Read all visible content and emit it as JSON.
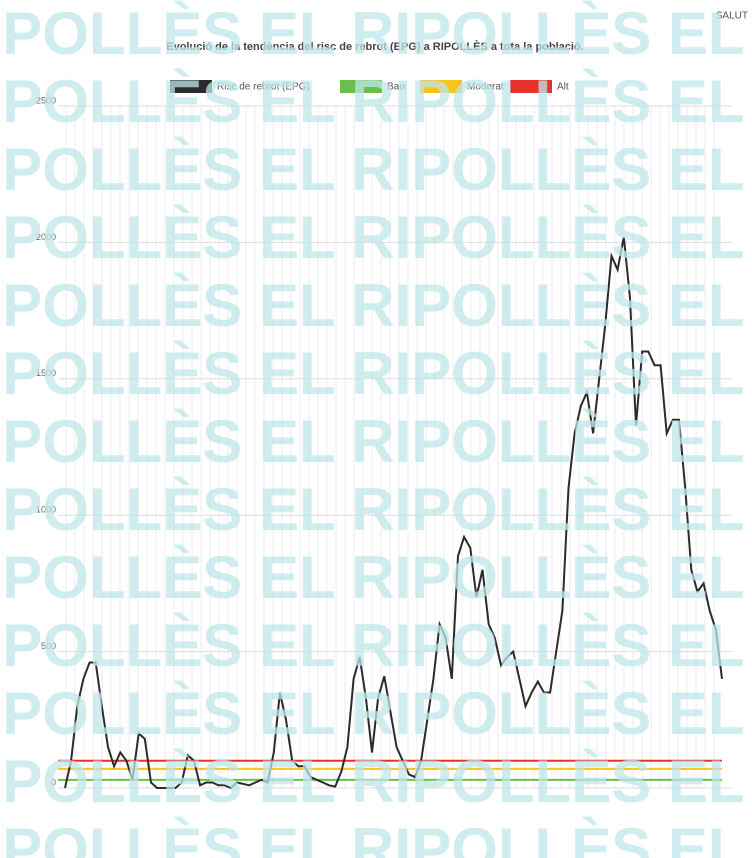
{
  "chart_data": {
    "type": "line",
    "title": "Evolució de la tendència del risc de rebrot (EPG) a RIPOLLÈS a tota la població.",
    "source": "SALUT",
    "watermark": "EL RIPOLLÈS",
    "series": [
      {
        "name": "Risc de rebrot (EPG)",
        "color": "#2b2b2b",
        "values": [
          0,
          100,
          300,
          400,
          460,
          460,
          300,
          150,
          80,
          130,
          100,
          30,
          200,
          180,
          20,
          0,
          0,
          0,
          0,
          20,
          120,
          100,
          10,
          20,
          20,
          10,
          10,
          0,
          20,
          15,
          10,
          20,
          30,
          20,
          130,
          350,
          250,
          100,
          80,
          80,
          40,
          30,
          20,
          10,
          5,
          60,
          150,
          400,
          480,
          330,
          130,
          330,
          410,
          280,
          150,
          100,
          50,
          40,
          100,
          250,
          400,
          600,
          550,
          400,
          850,
          920,
          880,
          700,
          800,
          600,
          550,
          450,
          480,
          500,
          400,
          300,
          350,
          390,
          350,
          350,
          500,
          650,
          1100,
          1300,
          1400,
          1450,
          1300,
          1500,
          1700,
          1950,
          1900,
          2020,
          1800,
          1330,
          1600,
          1600,
          1550,
          1550,
          1300,
          1350,
          1350,
          1100,
          800,
          720,
          750,
          650,
          580,
          400
        ]
      }
    ],
    "thresholds": [
      {
        "name": "Baix",
        "color": "#6abf4b",
        "value": 30
      },
      {
        "name": "Moderat",
        "color": "#f5c518",
        "value": 70
      },
      {
        "name": "Alt",
        "color": "#e8312f",
        "value": 100
      }
    ],
    "ylim": [
      0,
      2500
    ],
    "yticks": [
      0,
      500,
      1000,
      1500,
      2000,
      2500
    ],
    "grid": true
  }
}
